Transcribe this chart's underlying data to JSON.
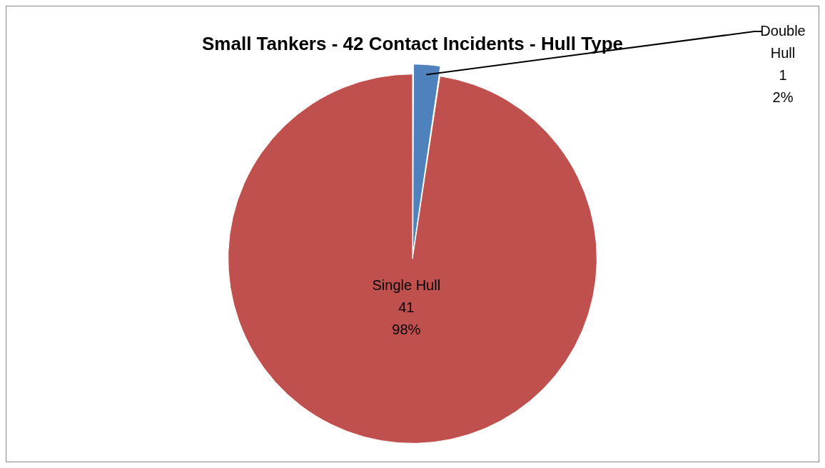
{
  "chart_data": {
    "type": "pie",
    "title": "Small Tankers - 42 Contact Incidents - Hull Type",
    "categories": [
      "Double Hull",
      "Single Hull"
    ],
    "values": [
      1,
      41
    ],
    "colors": [
      "#4f81bd",
      "#c0504d"
    ],
    "value_labels": [
      "1\n2%",
      "41\n98%"
    ],
    "legend": false
  }
}
